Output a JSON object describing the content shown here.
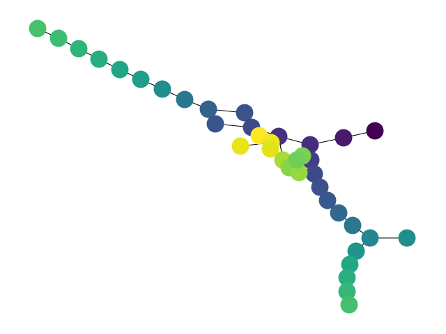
{
  "figure": {
    "type": "network-graph",
    "colormap": "viridis",
    "edge_color": "#000000",
    "background": "#ffffff"
  },
  "nodes": [
    {
      "id": "n1",
      "color": "#440154"
    },
    {
      "id": "n2",
      "color": "#481a6c"
    },
    {
      "id": "n3",
      "color": "#472d7b"
    },
    {
      "id": "n4",
      "color": "#46327e"
    },
    {
      "id": "n5",
      "color": "#433e85"
    },
    {
      "id": "n6",
      "color": "#3e4989"
    },
    {
      "id": "n7",
      "color": "#3b518b"
    },
    {
      "id": "n8",
      "color": "#38598c"
    },
    {
      "id": "n9",
      "color": "#34618d"
    },
    {
      "id": "n10",
      "color": "#31688e"
    },
    {
      "id": "n11",
      "color": "#2e6f8e"
    },
    {
      "id": "n12",
      "color": "#2a778e"
    },
    {
      "id": "n13",
      "color": "#277f8e"
    },
    {
      "id": "n14",
      "color": "#24868e"
    },
    {
      "id": "n15",
      "color": "#218e8d"
    },
    {
      "id": "n16",
      "color": "#1f958b"
    },
    {
      "id": "n17",
      "color": "#1f9e89"
    },
    {
      "id": "n18",
      "color": "#22a785"
    },
    {
      "id": "n19",
      "color": "#2ab07f"
    },
    {
      "id": "n20",
      "color": "#35b779"
    },
    {
      "id": "n21",
      "color": "#44bf70"
    },
    {
      "id": "n22",
      "color": "#1f958b"
    },
    {
      "id": "n23",
      "color": "#22a785"
    },
    {
      "id": "n24",
      "color": "#2ab07f"
    },
    {
      "id": "n25",
      "color": "#35b779"
    },
    {
      "id": "n26",
      "color": "#44bf70"
    },
    {
      "id": "n27",
      "color": "#48c16e"
    },
    {
      "id": "n28",
      "color": "#38598c"
    },
    {
      "id": "n29",
      "color": "#3e4989"
    },
    {
      "id": "n30",
      "color": "#472d7b"
    },
    {
      "id": "n31",
      "color": "#6ece58"
    },
    {
      "id": "n32",
      "color": "#7ad151"
    },
    {
      "id": "n33",
      "color": "#86d549"
    },
    {
      "id": "n34",
      "color": "#a5db36"
    },
    {
      "id": "n35",
      "color": "#c2df23"
    },
    {
      "id": "n36",
      "color": "#e2e418"
    },
    {
      "id": "n37",
      "color": "#eae51a"
    },
    {
      "id": "n38",
      "color": "#fde725"
    },
    {
      "id": "n39",
      "color": "#f1e51d"
    },
    {
      "id": "n40",
      "color": "#7ad151"
    }
  ],
  "edges": [
    [
      "n1",
      "n2"
    ],
    [
      "n2",
      "n3"
    ],
    [
      "n3",
      "n4"
    ],
    [
      "n4",
      "n5"
    ],
    [
      "n5",
      "n6"
    ],
    [
      "n6",
      "n7"
    ],
    [
      "n7",
      "n8"
    ],
    [
      "n8",
      "n9"
    ],
    [
      "n9",
      "n10"
    ],
    [
      "n10",
      "n11"
    ],
    [
      "n11",
      "n12"
    ],
    [
      "n12",
      "n13"
    ],
    [
      "n13",
      "n14"
    ],
    [
      "n13",
      "n22"
    ],
    [
      "n14",
      "n15"
    ],
    [
      "n15",
      "n16"
    ],
    [
      "n16",
      "n17"
    ],
    [
      "n17",
      "n18"
    ],
    [
      "n18",
      "n19"
    ],
    [
      "n19",
      "n20"
    ],
    [
      "n20",
      "n21"
    ],
    [
      "n22",
      "n23"
    ],
    [
      "n23",
      "n24"
    ],
    [
      "n24",
      "n25"
    ],
    [
      "n25",
      "n26"
    ],
    [
      "n4",
      "n29"
    ],
    [
      "n29",
      "n28"
    ],
    [
      "n28",
      "n27"
    ],
    [
      "n5",
      "n30"
    ],
    [
      "n29",
      "n30"
    ],
    [
      "n30",
      "n4"
    ],
    [
      "n6",
      "n40"
    ],
    [
      "n40",
      "n33"
    ],
    [
      "n33",
      "n34"
    ],
    [
      "n34",
      "n31"
    ],
    [
      "n31",
      "n32"
    ],
    [
      "n33",
      "n35"
    ],
    [
      "n29",
      "n38"
    ],
    [
      "n38",
      "n36"
    ],
    [
      "n36",
      "n37"
    ],
    [
      "n37",
      "n39"
    ]
  ]
}
